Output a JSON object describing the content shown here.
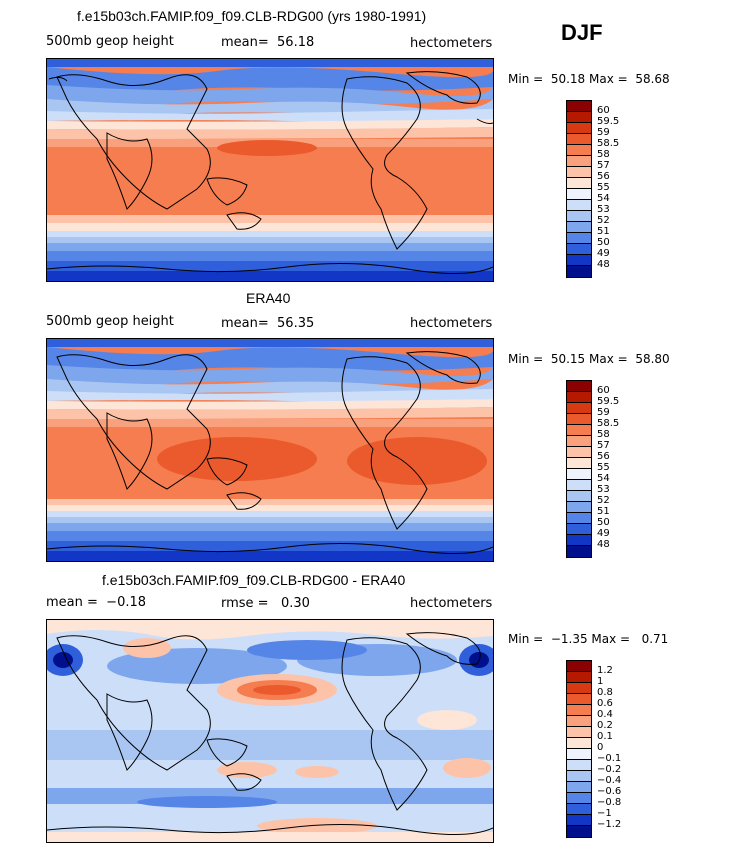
{
  "season": "DJF",
  "panels": [
    {
      "title": "f.e15b03ch.FAMIP.f09_f09.CLB-RDG00 (yrs 1980-1991)",
      "left_label": "500mb geop height",
      "mean_label": "mean=",
      "mean_value": "56.18",
      "units": "hectometers",
      "min_label": "Min =",
      "min_value": "50.18",
      "max_label": "Max =",
      "max_value": "58.68"
    },
    {
      "title": "ERA40",
      "left_label": "500mb geop height",
      "mean_label": "mean=",
      "mean_value": "56.35",
      "units": "hectometers",
      "min_label": "Min =",
      "min_value": "50.15",
      "max_label": "Max =",
      "max_value": "58.80"
    },
    {
      "title": "f.e15b03ch.FAMIP.f09_f09.CLB-RDG00 - ERA40",
      "mean_label": "mean =",
      "mean_value": "−0.18",
      "rmse_label": "rmse =",
      "rmse_value": "0.30",
      "units": "hectometers",
      "min_label": "Min =",
      "min_value": "−1.35",
      "max_label": "Max =",
      "max_value": "0.71"
    }
  ],
  "colorbars": {
    "height_levels": [
      "60",
      "59.5",
      "59",
      "58.5",
      "58",
      "57",
      "56",
      "55",
      "54",
      "53",
      "52",
      "51",
      "50",
      "49",
      "48"
    ],
    "height_colors": [
      "#8b0000",
      "#b51a00",
      "#d73a12",
      "#eb5a2c",
      "#f57d4f",
      "#f9a07c",
      "#fcc3a9",
      "#fde5d8",
      "#eef3fc",
      "#cddff8",
      "#a9c6f2",
      "#7ea6ec",
      "#5585e6",
      "#2f5fdb",
      "#1237c6",
      "#000f8c"
    ],
    "diff_levels": [
      "1.2",
      "1",
      "0.8",
      "0.6",
      "0.4",
      "0.2",
      "0.1",
      "0",
      "−0.1",
      "−0.2",
      "−0.4",
      "−0.6",
      "−0.8",
      "−1",
      "−1.2"
    ],
    "diff_colors": [
      "#8b0000",
      "#b51a00",
      "#d73a12",
      "#eb5a2c",
      "#f57d4f",
      "#f9a07c",
      "#fcc3a9",
      "#fde5d8",
      "#eef3fc",
      "#cddff8",
      "#a9c6f2",
      "#7ea6ec",
      "#5585e6",
      "#2f5fdb",
      "#1237c6",
      "#000f8c"
    ]
  }
}
